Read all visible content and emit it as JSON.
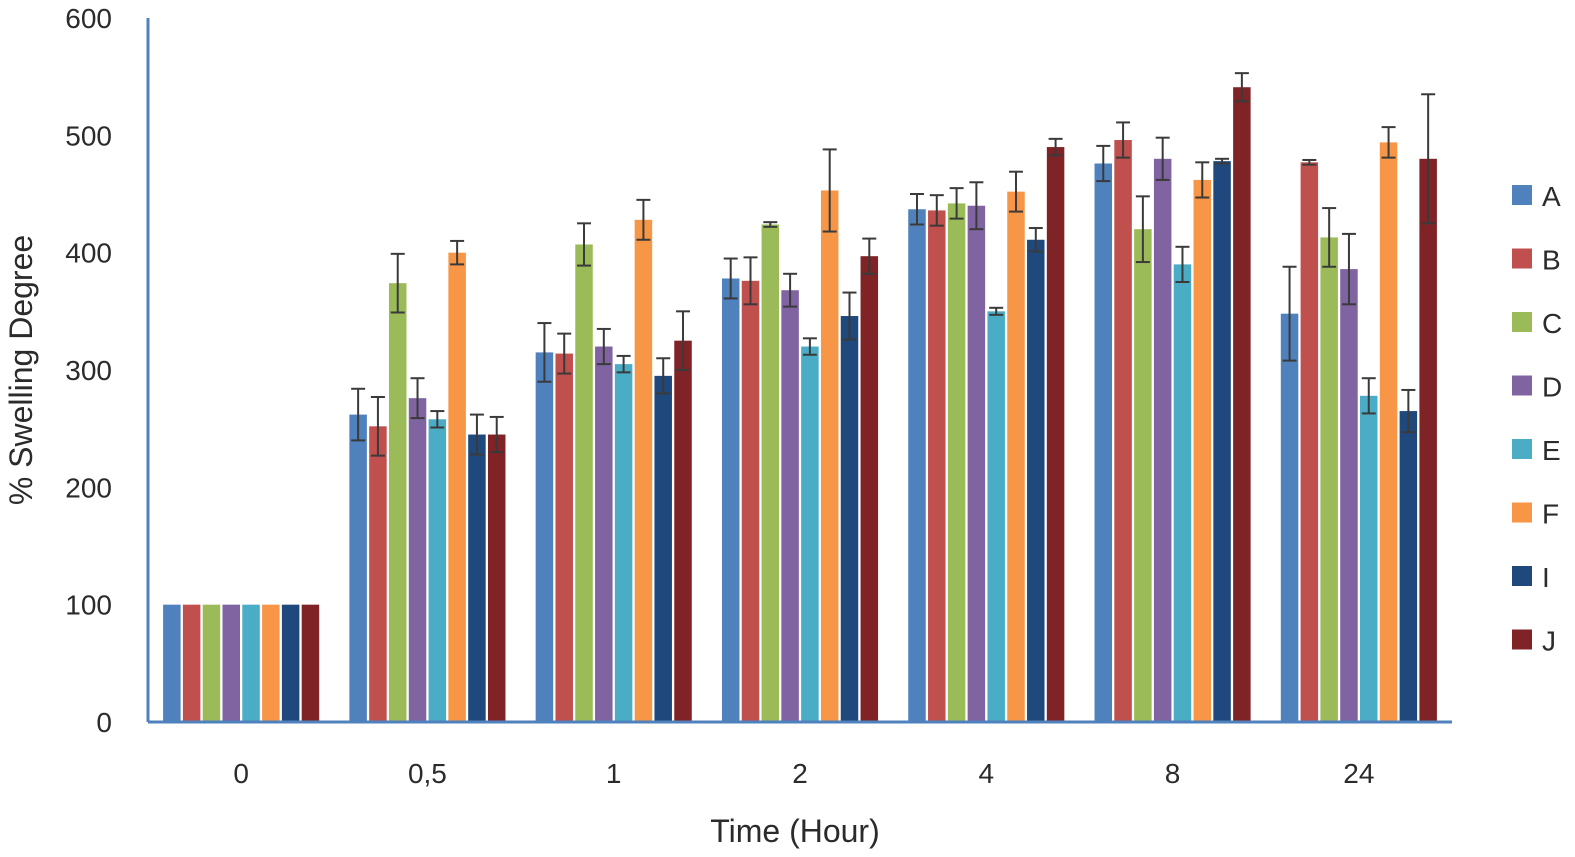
{
  "chart_data": {
    "type": "bar",
    "title": "",
    "xlabel": "Time (Hour)",
    "ylabel": "% Swelling Degree",
    "ylim": [
      0,
      600
    ],
    "yticks": [
      "0",
      "100",
      "200",
      "300",
      "400",
      "500",
      "600"
    ],
    "grid": false,
    "legend_position": "right",
    "categories": [
      "0",
      "0,5",
      "1",
      "2",
      "4",
      "8",
      "24"
    ],
    "series": [
      {
        "name": "A",
        "color": "#4F81BD",
        "values": [
          100,
          262,
          315,
          378,
          437,
          476,
          348
        ],
        "errors": [
          0,
          22,
          25,
          17,
          13,
          15,
          40
        ]
      },
      {
        "name": "B",
        "color": "#C0504D",
        "values": [
          100,
          252,
          314,
          376,
          436,
          496,
          477
        ],
        "errors": [
          0,
          25,
          17,
          20,
          13,
          15,
          2
        ]
      },
      {
        "name": "C",
        "color": "#9BBB59",
        "values": [
          100,
          374,
          407,
          424,
          442,
          420,
          413
        ],
        "errors": [
          0,
          25,
          18,
          2,
          13,
          28,
          25
        ]
      },
      {
        "name": "D",
        "color": "#8064A2",
        "values": [
          100,
          276,
          320,
          368,
          440,
          480,
          386
        ],
        "errors": [
          0,
          17,
          15,
          14,
          20,
          18,
          30
        ]
      },
      {
        "name": "E",
        "color": "#4BACC6",
        "values": [
          100,
          258,
          305,
          320,
          350,
          390,
          278
        ],
        "errors": [
          0,
          7,
          7,
          7,
          3,
          15,
          15
        ]
      },
      {
        "name": "F",
        "color": "#F79646",
        "values": [
          100,
          400,
          428,
          453,
          452,
          462,
          494
        ],
        "errors": [
          0,
          10,
          17,
          35,
          17,
          15,
          13
        ]
      },
      {
        "name": "I",
        "color": "#1F497D",
        "values": [
          100,
          245,
          295,
          346,
          411,
          478,
          265
        ],
        "errors": [
          0,
          17,
          15,
          20,
          10,
          2,
          18
        ]
      },
      {
        "name": "J",
        "color": "#7F2327",
        "values": [
          100,
          245,
          325,
          397,
          490,
          541,
          480
        ],
        "errors": [
          0,
          15,
          25,
          15,
          7,
          12,
          55
        ]
      }
    ]
  }
}
